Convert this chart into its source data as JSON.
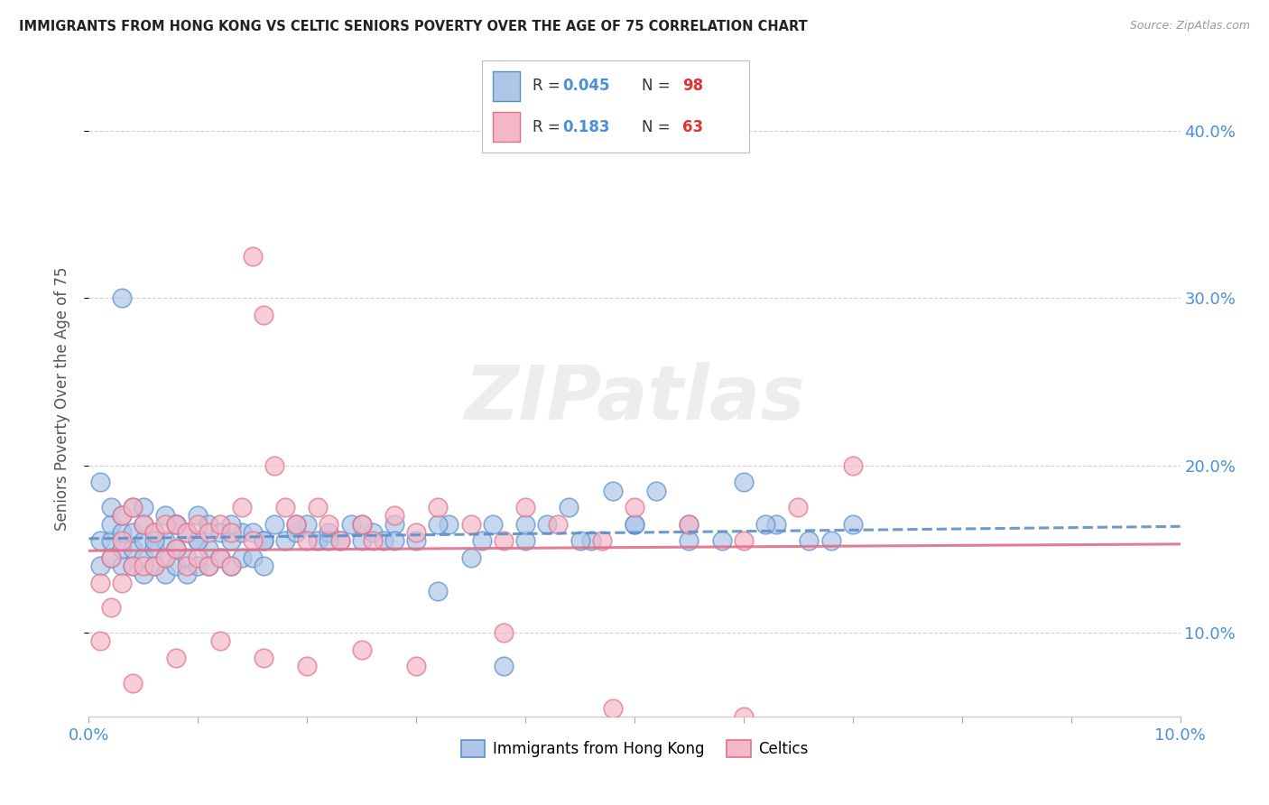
{
  "title": "IMMIGRANTS FROM HONG KONG VS CELTIC SENIORS POVERTY OVER THE AGE OF 75 CORRELATION CHART",
  "source": "Source: ZipAtlas.com",
  "ylabel": "Seniors Poverty Over the Age of 75",
  "xlim": [
    0.0,
    0.1
  ],
  "ylim": [
    0.05,
    0.43
  ],
  "xticks": [
    0.0,
    0.01,
    0.02,
    0.03,
    0.04,
    0.05,
    0.06,
    0.07,
    0.08,
    0.09,
    0.1
  ],
  "xticklabels": [
    "0.0%",
    "",
    "",
    "",
    "",
    "",
    "",
    "",
    "",
    "",
    "10.0%"
  ],
  "yticks": [
    0.1,
    0.2,
    0.3,
    0.4
  ],
  "yticklabels": [
    "10.0%",
    "20.0%",
    "30.0%",
    "40.0%"
  ],
  "blue_color": "#aec6e8",
  "blue_edge": "#5b8fc9",
  "pink_color": "#f4b8c8",
  "pink_edge": "#e0708a",
  "trend_blue_color": "#5b8fc9",
  "trend_pink_color": "#e0708a",
  "watermark": "ZIPatlas",
  "background_color": "#ffffff",
  "grid_color": "#cccccc",
  "blue_R": "0.045",
  "blue_N": "98",
  "pink_R": "0.183",
  "pink_N": "63",
  "blue_scatter_x": [
    0.001,
    0.001,
    0.001,
    0.002,
    0.002,
    0.002,
    0.002,
    0.003,
    0.003,
    0.003,
    0.003,
    0.004,
    0.004,
    0.004,
    0.004,
    0.005,
    0.005,
    0.005,
    0.005,
    0.005,
    0.006,
    0.006,
    0.006,
    0.007,
    0.007,
    0.007,
    0.007,
    0.008,
    0.008,
    0.008,
    0.009,
    0.009,
    0.009,
    0.01,
    0.01,
    0.01,
    0.011,
    0.011,
    0.011,
    0.012,
    0.012,
    0.013,
    0.013,
    0.014,
    0.014,
    0.015,
    0.015,
    0.016,
    0.016,
    0.017,
    0.018,
    0.019,
    0.02,
    0.021,
    0.022,
    0.023,
    0.024,
    0.025,
    0.026,
    0.027,
    0.028,
    0.03,
    0.032,
    0.033,
    0.035,
    0.037,
    0.038,
    0.04,
    0.042,
    0.044,
    0.046,
    0.048,
    0.05,
    0.052,
    0.055,
    0.058,
    0.06,
    0.063,
    0.066,
    0.07,
    0.003,
    0.006,
    0.008,
    0.01,
    0.013,
    0.016,
    0.019,
    0.022,
    0.025,
    0.028,
    0.032,
    0.036,
    0.04,
    0.045,
    0.05,
    0.055,
    0.062,
    0.068
  ],
  "blue_scatter_y": [
    0.14,
    0.155,
    0.19,
    0.145,
    0.155,
    0.165,
    0.175,
    0.14,
    0.15,
    0.16,
    0.17,
    0.14,
    0.15,
    0.16,
    0.175,
    0.135,
    0.145,
    0.155,
    0.165,
    0.175,
    0.14,
    0.15,
    0.16,
    0.135,
    0.145,
    0.155,
    0.17,
    0.14,
    0.15,
    0.165,
    0.135,
    0.145,
    0.16,
    0.14,
    0.155,
    0.17,
    0.14,
    0.15,
    0.165,
    0.145,
    0.16,
    0.14,
    0.155,
    0.145,
    0.16,
    0.145,
    0.16,
    0.14,
    0.155,
    0.165,
    0.155,
    0.16,
    0.165,
    0.155,
    0.16,
    0.155,
    0.165,
    0.155,
    0.16,
    0.155,
    0.165,
    0.155,
    0.125,
    0.165,
    0.145,
    0.165,
    0.08,
    0.155,
    0.165,
    0.175,
    0.155,
    0.185,
    0.165,
    0.185,
    0.165,
    0.155,
    0.19,
    0.165,
    0.155,
    0.165,
    0.3,
    0.155,
    0.165,
    0.155,
    0.165,
    0.155,
    0.165,
    0.155,
    0.165,
    0.155,
    0.165,
    0.155,
    0.165,
    0.155,
    0.165,
    0.155,
    0.165,
    0.155
  ],
  "pink_scatter_x": [
    0.001,
    0.001,
    0.002,
    0.002,
    0.003,
    0.003,
    0.003,
    0.004,
    0.004,
    0.005,
    0.005,
    0.006,
    0.006,
    0.007,
    0.007,
    0.008,
    0.008,
    0.009,
    0.009,
    0.01,
    0.01,
    0.011,
    0.011,
    0.012,
    0.012,
    0.013,
    0.013,
    0.014,
    0.015,
    0.015,
    0.016,
    0.017,
    0.018,
    0.019,
    0.02,
    0.021,
    0.022,
    0.023,
    0.025,
    0.026,
    0.028,
    0.03,
    0.032,
    0.035,
    0.038,
    0.04,
    0.043,
    0.047,
    0.05,
    0.055,
    0.06,
    0.065,
    0.07,
    0.004,
    0.008,
    0.012,
    0.016,
    0.02,
    0.025,
    0.03,
    0.038,
    0.048,
    0.06
  ],
  "pink_scatter_y": [
    0.13,
    0.095,
    0.115,
    0.145,
    0.13,
    0.155,
    0.17,
    0.14,
    0.175,
    0.14,
    0.165,
    0.14,
    0.16,
    0.145,
    0.165,
    0.15,
    0.165,
    0.14,
    0.16,
    0.145,
    0.165,
    0.14,
    0.16,
    0.145,
    0.165,
    0.14,
    0.16,
    0.175,
    0.325,
    0.155,
    0.29,
    0.2,
    0.175,
    0.165,
    0.155,
    0.175,
    0.165,
    0.155,
    0.165,
    0.155,
    0.17,
    0.16,
    0.175,
    0.165,
    0.155,
    0.175,
    0.165,
    0.155,
    0.175,
    0.165,
    0.155,
    0.175,
    0.2,
    0.07,
    0.085,
    0.095,
    0.085,
    0.08,
    0.09,
    0.08,
    0.1,
    0.055,
    0.05
  ]
}
